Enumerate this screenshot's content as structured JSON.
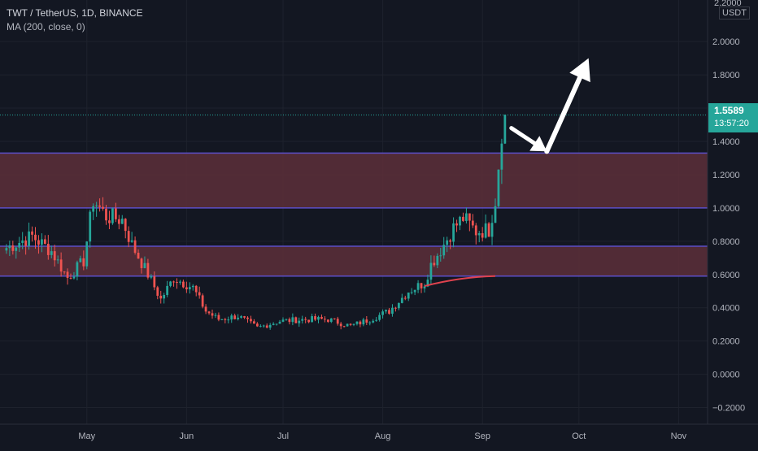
{
  "header": {
    "symbol_line": "TWT / TetherUS, 1D, BINANCE",
    "indicator_line": "MA (200, close, 0)"
  },
  "price_axis": {
    "unit": "USDT",
    "top_clipped_label": "2.2000"
  },
  "last_price": {
    "value": "1.5589",
    "countdown": "13:57:20",
    "color": "#26a69a"
  },
  "colors": {
    "background": "#131722",
    "up": "#26a69a",
    "down": "#ef5350",
    "zone_fill": "#5d2f3a",
    "zone_border": "#5b4ec7",
    "ma_line": "#e0424e",
    "arrow": "#ffffff"
  },
  "chart_data": {
    "type": "candlestick",
    "symbol": "TWT / TetherUS",
    "timeframe": "1D",
    "exchange": "BINANCE",
    "y_ticks": [
      2.0,
      1.8,
      1.6,
      1.4,
      1.2,
      1.0,
      0.8,
      0.6,
      0.4,
      0.2,
      0.0,
      -0.2
    ],
    "y_tick_labels": [
      "2.0000",
      "1.8000",
      "1.6000",
      "1.4000",
      "1.2000",
      "1.0000",
      "0.8000",
      "0.6000",
      "0.4000",
      "0.2000",
      "0.0000",
      "−0.2000"
    ],
    "ylim": [
      -0.3,
      2.25
    ],
    "x_labels": [
      "May",
      "Jun",
      "Jul",
      "Aug",
      "Sep",
      "Oct",
      "Nov"
    ],
    "x_label_days": [
      25,
      56,
      86,
      117,
      148,
      178,
      209
    ],
    "xlim": [
      -2,
      218
    ],
    "zones": [
      {
        "low": 1.0,
        "high": 1.33
      },
      {
        "low": 0.59,
        "high": 0.77
      }
    ],
    "ma200": {
      "start_day": 130,
      "end_day": 152,
      "start_value": 0.53,
      "end_value": 0.59
    },
    "close_series": [
      {
        "day": 0,
        "close": 0.76
      },
      {
        "day": 8,
        "close": 0.83
      },
      {
        "day": 14,
        "close": 0.74
      },
      {
        "day": 19,
        "close": 0.58
      },
      {
        "day": 24,
        "close": 0.68
      },
      {
        "day": 27,
        "close": 1.05
      },
      {
        "day": 31,
        "close": 0.95
      },
      {
        "day": 36,
        "close": 0.93
      },
      {
        "day": 39,
        "close": 0.78
      },
      {
        "day": 44,
        "close": 0.6
      },
      {
        "day": 48,
        "close": 0.45
      },
      {
        "day": 52,
        "close": 0.58
      },
      {
        "day": 58,
        "close": 0.52
      },
      {
        "day": 62,
        "close": 0.38
      },
      {
        "day": 66,
        "close": 0.33
      },
      {
        "day": 72,
        "close": 0.35
      },
      {
        "day": 78,
        "close": 0.28
      },
      {
        "day": 85,
        "close": 0.32
      },
      {
        "day": 93,
        "close": 0.33
      },
      {
        "day": 100,
        "close": 0.33
      },
      {
        "day": 107,
        "close": 0.29
      },
      {
        "day": 113,
        "close": 0.33
      },
      {
        "day": 119,
        "close": 0.38
      },
      {
        "day": 125,
        "close": 0.5
      },
      {
        "day": 130,
        "close": 0.55
      },
      {
        "day": 132,
        "close": 0.66
      },
      {
        "day": 136,
        "close": 0.78
      },
      {
        "day": 139,
        "close": 0.88
      },
      {
        "day": 142,
        "close": 0.94
      },
      {
        "day": 146,
        "close": 0.86
      },
      {
        "day": 150,
        "close": 0.87
      },
      {
        "day": 152,
        "close": 1.05
      },
      {
        "day": 154,
        "close": 1.47
      },
      {
        "day": 155,
        "close": 1.56
      }
    ],
    "annotation_arrows": [
      {
        "path": [
          [
            157,
            1.48
          ],
          [
            168,
            1.34
          ],
          [
            181,
            1.9
          ]
        ]
      }
    ]
  }
}
